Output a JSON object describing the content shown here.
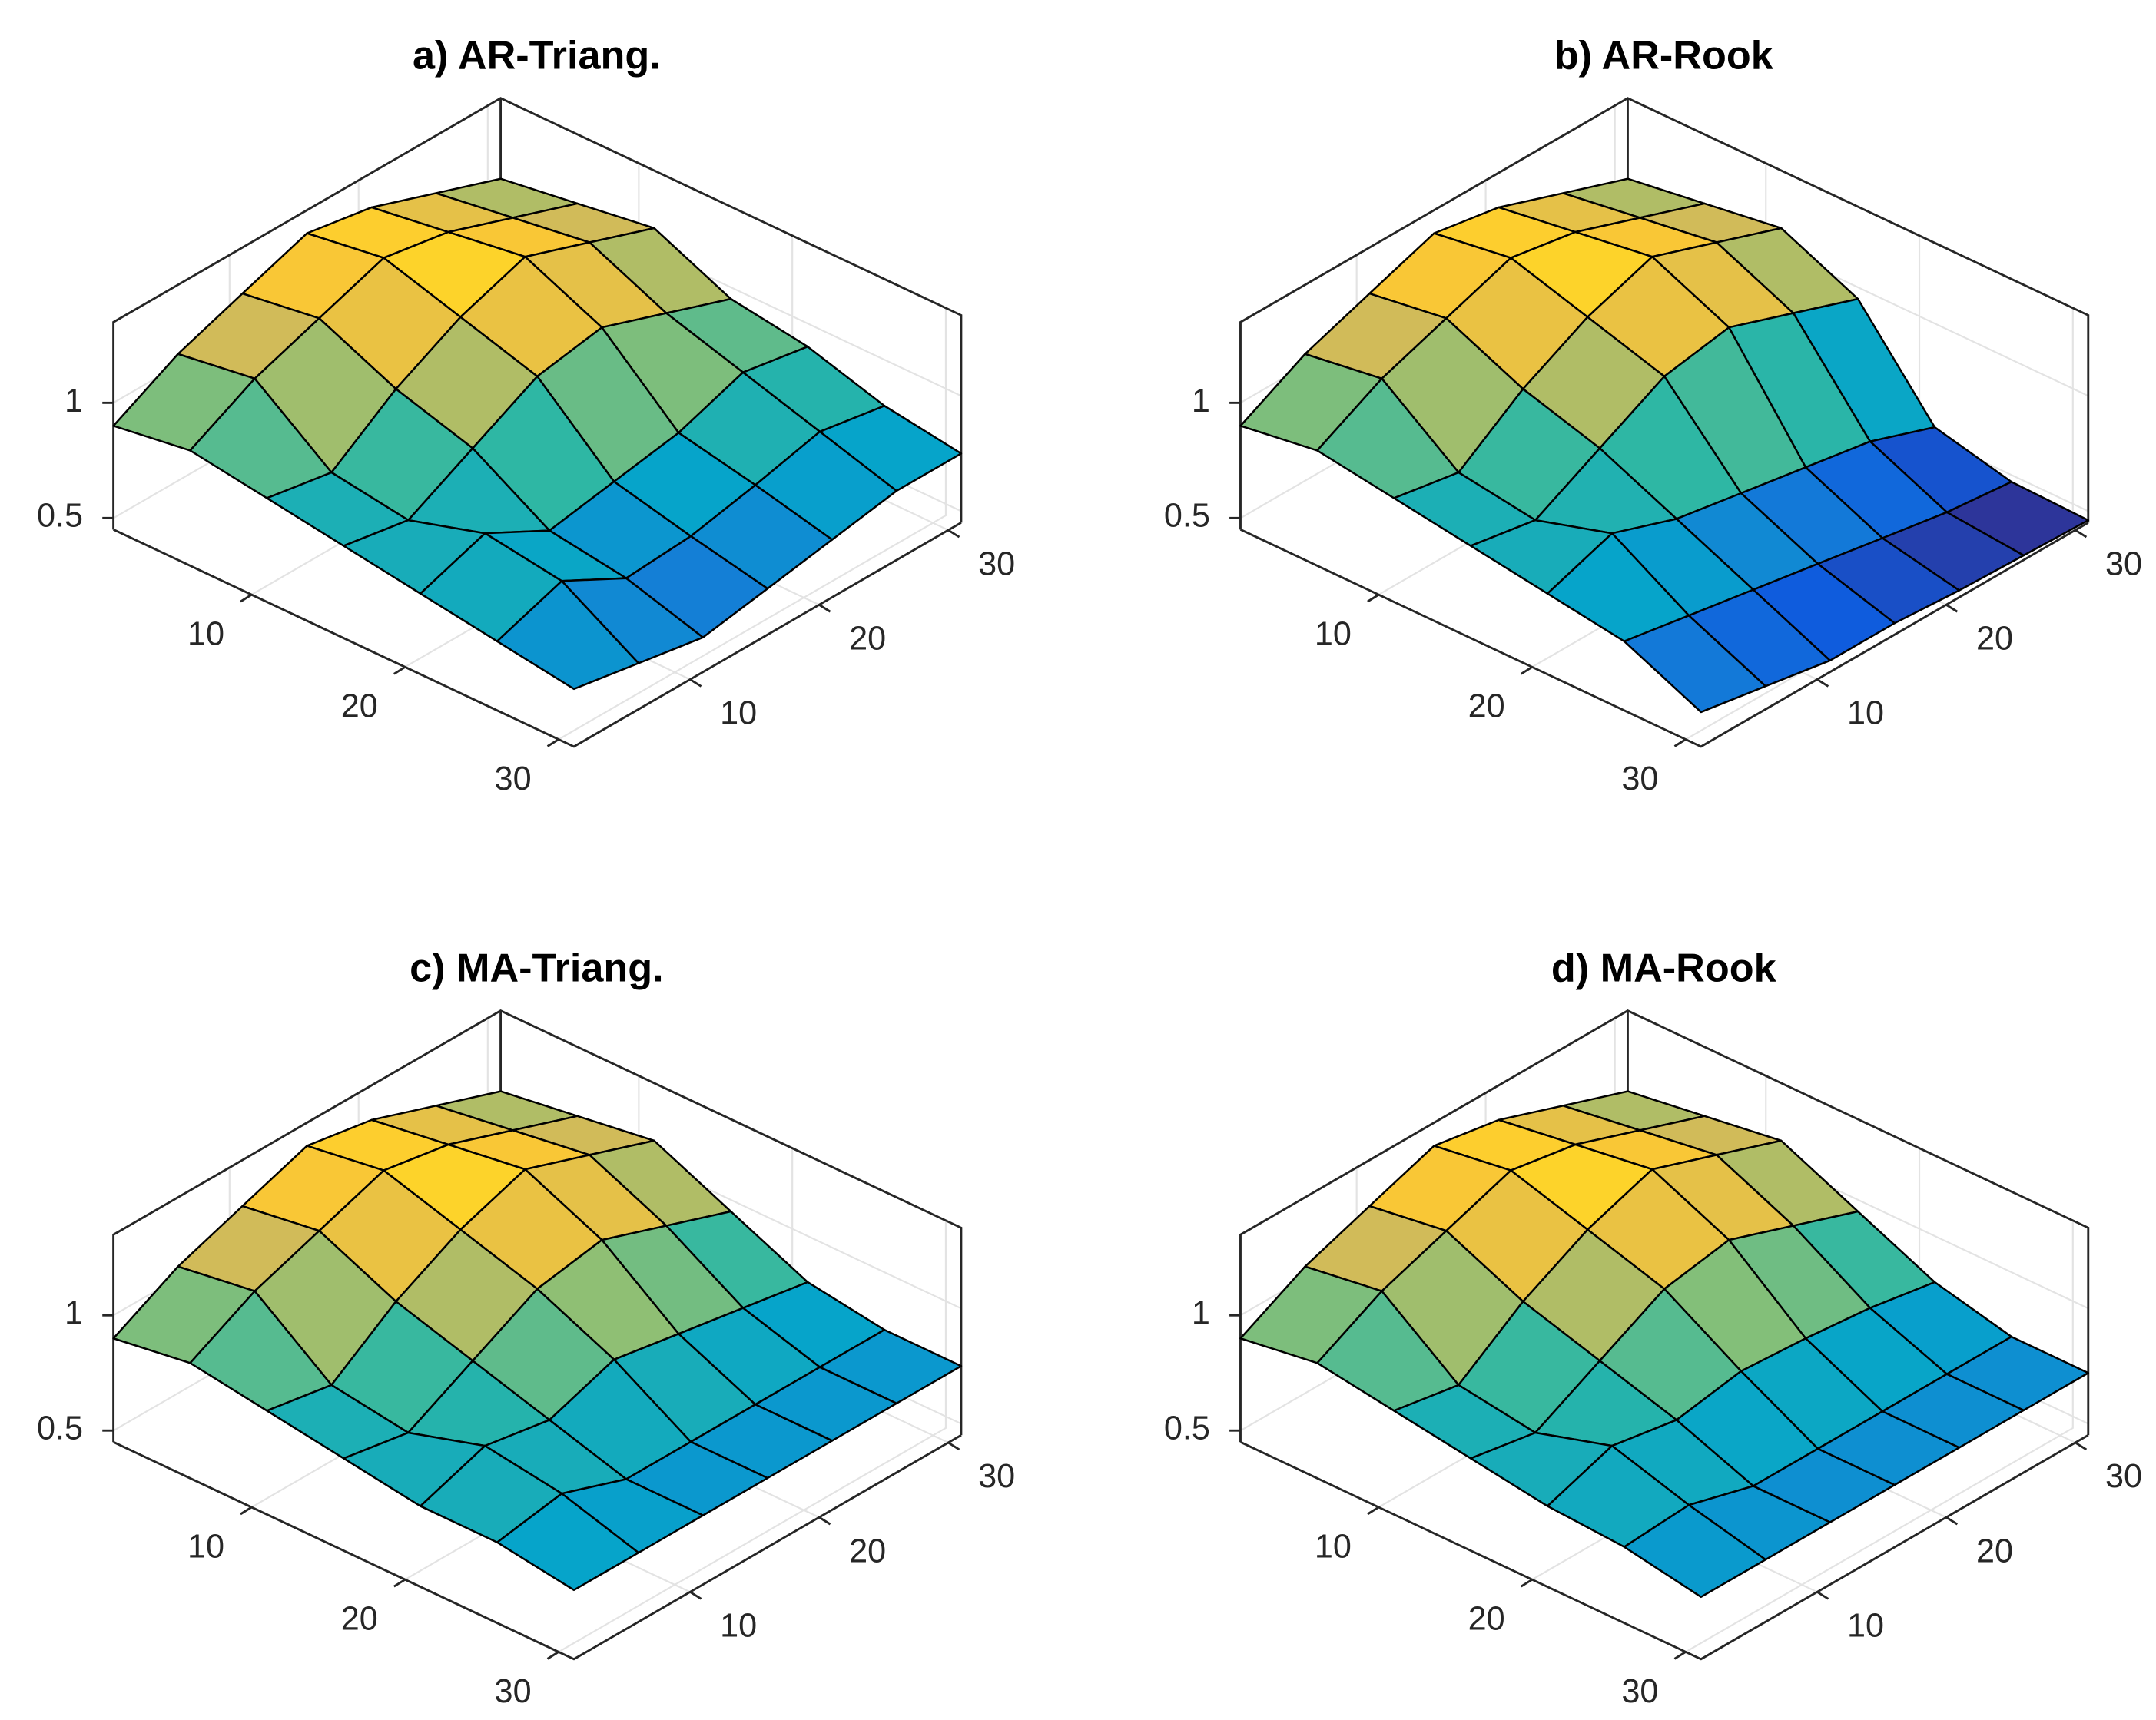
{
  "chart_data": [
    {
      "type": "surface",
      "title": "a)  AR-Triang.",
      "x": [
        1,
        6,
        11,
        16,
        21,
        26,
        31
      ],
      "y": [
        1,
        6,
        11,
        16,
        21,
        26,
        31
      ],
      "z": [
        [
          0.9,
          1.05,
          1.15,
          1.25,
          1.2,
          1.1,
          1.0
        ],
        [
          0.95,
          1.1,
          1.2,
          1.3,
          1.25,
          1.15,
          1.05
        ],
        [
          0.9,
          0.85,
          1.05,
          1.2,
          1.3,
          1.2,
          1.1
        ],
        [
          0.85,
          0.8,
          0.95,
          1.1,
          1.15,
          1.05,
          0.95
        ],
        [
          0.8,
          0.9,
          0.75,
          0.8,
          0.85,
          0.95,
          0.9
        ],
        [
          0.75,
          0.85,
          0.7,
          0.72,
          0.78,
          0.85,
          0.8
        ],
        [
          0.7,
          0.65,
          0.6,
          0.65,
          0.7,
          0.75,
          0.75
        ]
      ],
      "xlim": [
        1,
        31
      ],
      "ylim": [
        1,
        31
      ],
      "zlim": [
        0.45,
        1.35
      ],
      "xticks": [
        10,
        20,
        30
      ],
      "yticks": [
        10,
        20,
        30
      ],
      "zticks": [
        0.5,
        1
      ],
      "grid": true,
      "edge_color": "#000000",
      "colormap": [
        "#352a87",
        "#0f5cdd",
        "#1481d6",
        "#06a4ca",
        "#2eb7a4",
        "#87bf77",
        "#d1bb59",
        "#fec832",
        "#f9fb0e"
      ]
    },
    {
      "type": "surface",
      "title": "b)  AR-Rook",
      "x": [
        1,
        6,
        11,
        16,
        21,
        26,
        31
      ],
      "y": [
        1,
        6,
        11,
        16,
        21,
        26,
        31
      ],
      "z": [
        [
          0.9,
          1.05,
          1.15,
          1.25,
          1.2,
          1.1,
          1.0
        ],
        [
          0.95,
          1.1,
          1.2,
          1.3,
          1.25,
          1.15,
          1.05
        ],
        [
          0.9,
          0.85,
          1.05,
          1.2,
          1.3,
          1.2,
          1.1
        ],
        [
          0.85,
          0.8,
          0.95,
          1.1,
          1.15,
          1.05,
          0.95
        ],
        [
          0.8,
          0.9,
          0.8,
          0.75,
          0.7,
          0.65,
          0.55
        ],
        [
          0.75,
          0.7,
          0.65,
          0.6,
          0.55,
          0.5,
          0.47
        ],
        [
          0.6,
          0.55,
          0.5,
          0.5,
          0.48,
          0.47,
          0.46
        ]
      ],
      "xlim": [
        1,
        31
      ],
      "ylim": [
        1,
        31
      ],
      "zlim": [
        0.45,
        1.35
      ],
      "xticks": [
        10,
        20,
        30
      ],
      "yticks": [
        10,
        20,
        30
      ],
      "zticks": [
        0.5,
        1
      ],
      "grid": true,
      "edge_color": "#000000",
      "colormap": [
        "#352a87",
        "#0f5cdd",
        "#1481d6",
        "#06a4ca",
        "#2eb7a4",
        "#87bf77",
        "#d1bb59",
        "#fec832",
        "#f9fb0e"
      ]
    },
    {
      "type": "surface",
      "title": "c)  MA-Triang.",
      "x": [
        1,
        6,
        11,
        16,
        21,
        26,
        31
      ],
      "y": [
        1,
        6,
        11,
        16,
        21,
        26,
        31
      ],
      "z": [
        [
          0.9,
          1.05,
          1.15,
          1.25,
          1.2,
          1.1,
          1.0
        ],
        [
          0.95,
          1.1,
          1.2,
          1.3,
          1.25,
          1.15,
          1.05
        ],
        [
          0.9,
          0.85,
          1.05,
          1.2,
          1.3,
          1.2,
          1.1
        ],
        [
          0.85,
          0.8,
          0.95,
          1.1,
          1.15,
          1.05,
          0.95
        ],
        [
          0.8,
          0.9,
          0.85,
          0.95,
          0.9,
          0.85,
          0.8
        ],
        [
          0.8,
          0.85,
          0.75,
          0.75,
          0.75,
          0.75,
          0.75
        ],
        [
          0.75,
          0.75,
          0.75,
          0.75,
          0.75,
          0.75,
          0.75
        ]
      ],
      "xlim": [
        1,
        31
      ],
      "ylim": [
        1,
        31
      ],
      "zlim": [
        0.45,
        1.35
      ],
      "xticks": [
        10,
        20,
        30
      ],
      "yticks": [
        10,
        20,
        30
      ],
      "zticks": [
        0.5,
        1
      ],
      "grid": true,
      "edge_color": "#000000",
      "colormap": [
        "#352a87",
        "#0f5cdd",
        "#1481d6",
        "#06a4ca",
        "#2eb7a4",
        "#87bf77",
        "#d1bb59",
        "#fec832",
        "#f9fb0e"
      ]
    },
    {
      "type": "surface",
      "title": "d)  MA-Rook",
      "x": [
        1,
        6,
        11,
        16,
        21,
        26,
        31
      ],
      "y": [
        1,
        6,
        11,
        16,
        21,
        26,
        31
      ],
      "z": [
        [
          0.9,
          1.05,
          1.15,
          1.25,
          1.2,
          1.1,
          1.0
        ],
        [
          0.95,
          1.1,
          1.2,
          1.3,
          1.25,
          1.15,
          1.05
        ],
        [
          0.9,
          0.85,
          1.05,
          1.2,
          1.3,
          1.2,
          1.1
        ],
        [
          0.85,
          0.8,
          0.95,
          1.1,
          1.15,
          1.05,
          0.95
        ],
        [
          0.8,
          0.9,
          0.85,
          0.9,
          0.88,
          0.85,
          0.8
        ],
        [
          0.78,
          0.8,
          0.72,
          0.72,
          0.72,
          0.72,
          0.72
        ],
        [
          0.72,
          0.72,
          0.72,
          0.72,
          0.72,
          0.72,
          0.72
        ]
      ],
      "xlim": [
        1,
        31
      ],
      "ylim": [
        1,
        31
      ],
      "zlim": [
        0.45,
        1.35
      ],
      "xticks": [
        10,
        20,
        30
      ],
      "yticks": [
        10,
        20,
        30
      ],
      "zticks": [
        0.5,
        1
      ],
      "grid": true,
      "edge_color": "#000000",
      "colormap": [
        "#352a87",
        "#0f5cdd",
        "#1481d6",
        "#06a4ca",
        "#2eb7a4",
        "#87bf77",
        "#d1bb59",
        "#fec832",
        "#f9fb0e"
      ]
    }
  ]
}
